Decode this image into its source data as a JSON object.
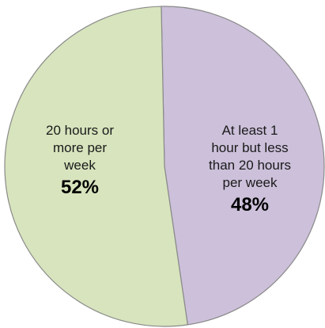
{
  "chart_data": {
    "type": "pie",
    "title": "",
    "slices": [
      {
        "label_lines": [
          "At least 1",
          "hour but less",
          "than 20 hours",
          "per week"
        ],
        "value": 48,
        "value_label": "48%",
        "color": "#ccc0da"
      },
      {
        "label_lines": [
          "20 hours or",
          "more per",
          "week"
        ],
        "value": 52,
        "value_label": "52%",
        "color": "#d7e4bd"
      }
    ],
    "border_color": "#8a8a8a",
    "start": "top",
    "direction": "clockwise",
    "legend": "none"
  }
}
